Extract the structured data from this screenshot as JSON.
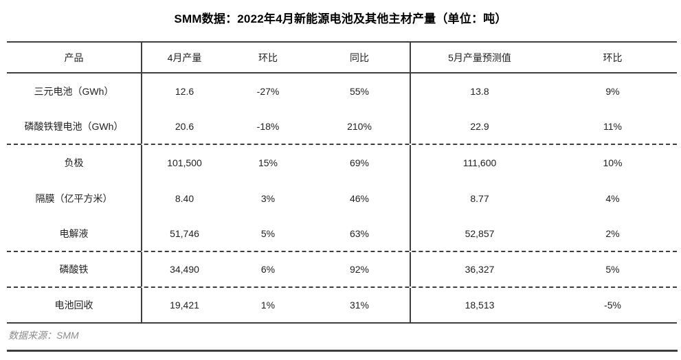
{
  "title": "SMM数据：2022年4月新能源电池及其他主材产量（单位：吨）",
  "source": "数据来源：SMM",
  "colors": {
    "line": "#3d3d3d",
    "text": "#212121",
    "title_text": "#000000",
    "source_text": "#8c8c8c",
    "background": "#ffffff"
  },
  "chart_data": {
    "type": "table",
    "title": "SMM数据：2022年4月新能源电池及其他主材产量（单位：吨）",
    "columns": [
      "产品",
      "4月产量",
      "环比",
      "同比",
      "5月产量预测值",
      "环比"
    ],
    "rows": [
      [
        "三元电池（GWh）",
        "12.6",
        "-27%",
        "55%",
        "13.8",
        "9%"
      ],
      [
        "磷酸铁锂电池（GWh）",
        "20.6",
        "-18%",
        "210%",
        "22.9",
        "11%"
      ],
      [
        "负极",
        "101,500",
        "15%",
        "69%",
        "111,600",
        "10%"
      ],
      [
        "隔膜（亿平方米）",
        "8.40",
        "3%",
        "46%",
        "8.77",
        "4%"
      ],
      [
        "电解液",
        "51,746",
        "5%",
        "63%",
        "52,857",
        "2%"
      ],
      [
        "磷酸铁",
        "34,490",
        "6%",
        "92%",
        "36,327",
        "5%"
      ],
      [
        "电池回收",
        "19,421",
        "1%",
        "31%",
        "18,513",
        "-5%"
      ]
    ],
    "group_dividers_after_rows": [
      1,
      4,
      5
    ],
    "source": "数据来源：SMM",
    "layout": {
      "grid": "off",
      "legend": "none"
    }
  }
}
